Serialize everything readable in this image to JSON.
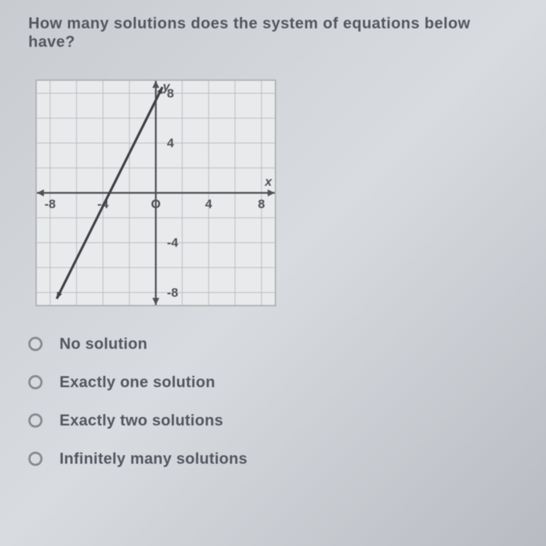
{
  "question": "How many solutions does the system of equations below have?",
  "graph": {
    "type": "line",
    "background_color": "#e8eaec",
    "grid_color": "#b8bac0",
    "axis_color": "#505056",
    "line_color": "#404046",
    "x_label": "x",
    "y_label": "y",
    "xlim": [
      -9,
      9
    ],
    "ylim": [
      -9,
      9
    ],
    "x_ticks": [
      -8,
      -4,
      0,
      4,
      8
    ],
    "y_ticks": [
      -8,
      -4,
      4,
      8
    ],
    "x_tick_labels": [
      "-8",
      "-4",
      "O",
      "4",
      "8"
    ],
    "y_tick_labels": [
      "-8",
      "-4",
      "4",
      "8"
    ],
    "grid_step": 2,
    "lines": [
      {
        "x1": -7.5,
        "y1": -8.5,
        "x2": 0.5,
        "y2": 8.5,
        "width": 3.5
      }
    ],
    "arrows": true,
    "tick_fontsize": 18,
    "label_fontsize": 18
  },
  "options": [
    {
      "label": "No solution"
    },
    {
      "label": "Exactly one solution"
    },
    {
      "label": "Exactly two solutions"
    },
    {
      "label": "Infinitely many solutions"
    }
  ]
}
